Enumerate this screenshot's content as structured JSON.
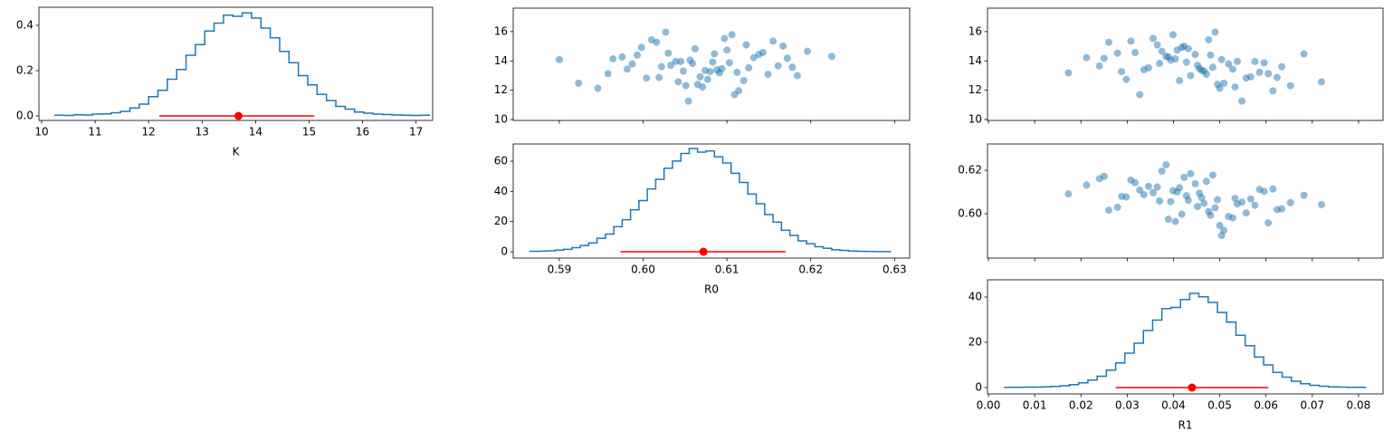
{
  "chart_data": [
    {
      "type": "histogram",
      "xlabel": "K",
      "color": "#1f77b4",
      "bins": [
        10.25,
        10.425,
        10.6,
        10.775,
        10.95,
        11.125,
        11.3,
        11.475,
        11.65,
        11.825,
        12,
        12.175,
        12.35,
        12.525,
        12.7,
        12.875,
        13.05,
        13.225,
        13.4,
        13.575,
        13.75,
        13.925,
        14.1,
        14.275,
        14.45,
        14.625,
        14.8,
        14.975,
        15.15,
        15.325,
        15.5,
        15.675,
        15.85,
        16.025,
        16.2,
        16.375,
        16.55,
        16.725,
        16.9,
        17.075,
        17.25
      ],
      "values": [
        0.003,
        0.002,
        0.005,
        0.004,
        0.008,
        0.009,
        0.014,
        0.02,
        0.035,
        0.052,
        0.085,
        0.113,
        0.162,
        0.205,
        0.268,
        0.315,
        0.375,
        0.41,
        0.445,
        0.44,
        0.455,
        0.432,
        0.388,
        0.345,
        0.285,
        0.235,
        0.178,
        0.137,
        0.095,
        0.068,
        0.042,
        0.03,
        0.017,
        0.012,
        0.008,
        0.006,
        0.004,
        0.003,
        0.002,
        0.003
      ],
      "estimate": 13.68,
      "interval": [
        12.2,
        15.1
      ],
      "estimate_color": "#ff0000",
      "xlim": [
        9.95,
        17.31
      ],
      "ylim": [
        -0.02,
        0.48
      ],
      "xticks": [
        10,
        11,
        12,
        13,
        14,
        15,
        16,
        17
      ],
      "yticks": [
        {
          "value": 0,
          "label": "0.0"
        },
        0.2,
        0.4
      ],
      "xtick_labels": true
    },
    {
      "type": "scatter",
      "color": "#1f77b4",
      "alpha": 0.5,
      "x": [
        0.6045,
        0.612,
        0.5993,
        0.608,
        0.6167,
        0.6022,
        0.6097,
        0.5946,
        0.6132,
        0.6068,
        0.6033,
        0.6196,
        0.5981,
        0.6109,
        0.6085,
        0.6056,
        0.6149,
        0.6016,
        0.5923,
        0.6103,
        0.6126,
        0.6062,
        0.6004,
        0.6225,
        0.6091,
        0.6027,
        0.6114,
        0.5964,
        0.6074,
        0.6143,
        0.6051,
        0.5987,
        0.6123,
        0.6184,
        0.6039,
        0.6077,
        0.601,
        0.6161,
        0.6054,
        0.61,
        0.59,
        0.6088,
        0.6138,
        0.6042,
        0.6059,
        0.6112,
        0.5998,
        0.6178,
        0.603,
        0.6071,
        0.5975,
        0.6094,
        0.6155,
        0.6019,
        0.6083,
        0.6065,
        0.6172,
        0.5958,
        0.6106,
        0.6048
      ],
      "y": [
        13.96,
        12.66,
        14.4,
        13.27,
        15.01,
        13.61,
        15.53,
        12.13,
        14.22,
        12.92,
        13.7,
        14.66,
        13.44,
        11.7,
        14.48,
        14.05,
        13.09,
        15.27,
        12.48,
        13.87,
        13.53,
        14.83,
        12.83,
        14.31,
        13.18,
        15.96,
        11.96,
        14.14,
        13.35,
        14.57,
        12.31,
        13.79,
        15.09,
        13,
        13.96,
        12.74,
        15.44,
        13.66,
        11.26,
        14.74,
        14.09,
        13.4,
        14.44,
        12.57,
        13.83,
        13.22,
        14.92,
        13.57,
        14.53,
        12.22,
        14.27,
        13.48,
        15.35,
        12.87,
        13.92,
        12.4,
        14.18,
        13.13,
        15.79,
        13.31
      ],
      "xlim": [
        0.5845,
        0.6318
      ],
      "ylim": [
        9.94,
        17.6
      ],
      "xticks": [
        0.59,
        0.6,
        0.61,
        0.62,
        0.63
      ],
      "yticks": [
        10,
        12,
        14,
        16
      ],
      "xtick_labels": false
    },
    {
      "type": "histogram",
      "xlabel": "R0",
      "color": "#1f77b4",
      "bins": [
        0.5865,
        0.5875,
        0.5885,
        0.5895,
        0.5905,
        0.5915,
        0.5925,
        0.5935,
        0.5945,
        0.5955,
        0.5965,
        0.5975,
        0.5985,
        0.5995,
        0.6005,
        0.6015,
        0.6025,
        0.6035,
        0.6045,
        0.6055,
        0.6065,
        0.6075,
        0.6085,
        0.6095,
        0.6105,
        0.6115,
        0.6125,
        0.6135,
        0.6145,
        0.6155,
        0.6165,
        0.6175,
        0.6185,
        0.6195,
        0.6205,
        0.6215,
        0.6225,
        0.6235,
        0.6245,
        0.6255,
        0.6265,
        0.6275,
        0.6285,
        0.6295
      ],
      "values": [
        0.3,
        0.4,
        0.6,
        1.1,
        1.6,
        2.7,
        4.1,
        5.8,
        8.9,
        11.7,
        16.6,
        21.2,
        27.8,
        33.9,
        41.6,
        48.0,
        55.3,
        60.1,
        65.1,
        68.4,
        66.0,
        66.8,
        62.9,
        58.8,
        52.0,
        45.9,
        38.2,
        31.8,
        24.7,
        19.6,
        14.2,
        10.8,
        7.2,
        5.3,
        3.3,
        2.3,
        1.3,
        0.9,
        0.5,
        0.3,
        0.2,
        0.1,
        0.1
      ],
      "estimate": 0.6072,
      "interval": [
        0.5973,
        0.617
      ],
      "estimate_color": "#ff0000",
      "xlim": [
        0.5845,
        0.6318
      ],
      "ylim": [
        -4.2,
        71.4
      ],
      "xticks": [
        0.59,
        {
          "value": 0.6,
          "label": "0.60"
        },
        0.61,
        0.62,
        0.63
      ],
      "yticks": [
        0,
        20,
        40,
        60
      ],
      "xtick_labels": true
    },
    {
      "type": "scatter",
      "color": "#1f77b4",
      "alpha": 0.5,
      "x": [
        0.0538,
        0.0413,
        0.048,
        0.0288,
        0.0423,
        0.0634,
        0.0356,
        0.05,
        0.0212,
        0.0567,
        0.0452,
        0.0375,
        0.0528,
        0.0327,
        0.0682,
        0.0394,
        0.0471,
        0.026,
        0.0509,
        0.0596,
        0.0346,
        0.0432,
        0.0557,
        0.0384,
        0.0173,
        0.049,
        0.0615,
        0.0404,
        0.0461,
        0.0317,
        0.0653,
        0.0519,
        0.0365,
        0.0437,
        0.0576,
        0.0298,
        0.0476,
        0.024,
        0.0548,
        0.0408,
        0.0504,
        0.0336,
        0.0447,
        0.072,
        0.037,
        0.0586,
        0.0418,
        0.0485,
        0.0279,
        0.0533,
        0.0389,
        0.0456,
        0.0308,
        0.0624,
        0.0428,
        0.0495,
        0.025,
        0.0605,
        0.0399,
        0.0466
      ],
      "y": [
        13.96,
        12.66,
        14.4,
        13.27,
        15.01,
        13.61,
        15.53,
        12.13,
        14.22,
        12.92,
        13.7,
        14.66,
        13.44,
        11.7,
        14.48,
        14.05,
        13.09,
        15.27,
        12.48,
        13.87,
        13.53,
        14.83,
        12.83,
        14.31,
        13.18,
        15.96,
        11.96,
        14.14,
        13.35,
        14.57,
        12.31,
        13.79,
        15.09,
        13,
        13.96,
        12.74,
        15.44,
        13.66,
        11.26,
        14.74,
        14.09,
        13.4,
        14.44,
        12.57,
        13.83,
        13.22,
        14.92,
        13.57,
        14.53,
        12.22,
        14.27,
        13.48,
        15.35,
        12.87,
        13.92,
        12.4,
        14.18,
        13.13,
        15.79,
        13.31
      ],
      "xlim": [
        -0.0002,
        0.0853
      ],
      "ylim": [
        9.94,
        17.6
      ],
      "xticks": [
        0,
        0.01,
        0.02,
        0.03,
        0.04,
        0.05,
        0.06,
        0.07,
        0.08
      ],
      "yticks": [
        10,
        12,
        14,
        16
      ],
      "xtick_labels": false
    },
    {
      "type": "scatter",
      "color": "#1f77b4",
      "alpha": 0.5,
      "x": [
        0.0538,
        0.0413,
        0.048,
        0.0288,
        0.0423,
        0.0634,
        0.0356,
        0.05,
        0.0212,
        0.0567,
        0.0452,
        0.0375,
        0.0528,
        0.0327,
        0.0682,
        0.0394,
        0.0471,
        0.026,
        0.0509,
        0.0596,
        0.0346,
        0.0432,
        0.0557,
        0.0384,
        0.0173,
        0.049,
        0.0615,
        0.0404,
        0.0461,
        0.0317,
        0.0653,
        0.0519,
        0.0365,
        0.0437,
        0.0576,
        0.0298,
        0.0476,
        0.024,
        0.0548,
        0.0408,
        0.0504,
        0.0336,
        0.0447,
        0.072,
        0.037,
        0.0586,
        0.0418,
        0.0485,
        0.0279,
        0.0533,
        0.0389,
        0.0456,
        0.0308,
        0.0624,
        0.0428,
        0.0495,
        0.025,
        0.0605,
        0.0399,
        0.0466
      ],
      "y": [
        0.6045,
        0.612,
        0.5993,
        0.608,
        0.6167,
        0.6022,
        0.6097,
        0.5946,
        0.6132,
        0.6068,
        0.6033,
        0.6196,
        0.5981,
        0.6109,
        0.6085,
        0.6056,
        0.6149,
        0.6016,
        0.5923,
        0.6103,
        0.6126,
        0.6062,
        0.6004,
        0.6225,
        0.6091,
        0.6027,
        0.6114,
        0.5964,
        0.6074,
        0.6143,
        0.6051,
        0.5987,
        0.6123,
        0.6184,
        0.6039,
        0.6077,
        0.601,
        0.6161,
        0.6054,
        0.61,
        0.59,
        0.6088,
        0.6138,
        0.6042,
        0.6059,
        0.6112,
        0.5998,
        0.6178,
        0.603,
        0.6071,
        0.5975,
        0.6094,
        0.6155,
        0.6019,
        0.6083,
        0.6065,
        0.6172,
        0.5958,
        0.6106,
        0.6048
      ],
      "xlim": [
        -0.0002,
        0.0853
      ],
      "ylim": [
        0.5796,
        0.6321
      ],
      "xticks": [
        0,
        0.01,
        0.02,
        0.03,
        0.04,
        0.05,
        0.06,
        0.07,
        0.08
      ],
      "yticks": [
        {
          "value": 0.6,
          "label": "0.60"
        },
        0.62
      ],
      "xtick_labels": false
    },
    {
      "type": "histogram",
      "xlabel": "R1",
      "color": "#1f77b4",
      "bins": [
        0.0035,
        0.0055,
        0.0075,
        0.0095,
        0.0115,
        0.0135,
        0.0155,
        0.0175,
        0.0195,
        0.0215,
        0.0235,
        0.0255,
        0.0275,
        0.0295,
        0.0315,
        0.0335,
        0.0355,
        0.0375,
        0.0395,
        0.0415,
        0.0435,
        0.0455,
        0.0475,
        0.0495,
        0.0515,
        0.0535,
        0.0555,
        0.0575,
        0.0595,
        0.0615,
        0.0635,
        0.0655,
        0.0675,
        0.0695,
        0.0715,
        0.0735,
        0.0755,
        0.0775,
        0.0795,
        0.0815
      ],
      "values": [
        0.1,
        0.1,
        0.2,
        0.2,
        0.3,
        0.5,
        0.8,
        1.3,
        2.1,
        3.3,
        5.0,
        7.7,
        10.9,
        15.2,
        19.6,
        25.2,
        29.8,
        34.9,
        35.4,
        38.9,
        41.6,
        40.1,
        37.6,
        33.2,
        28.9,
        23.1,
        18.5,
        13.5,
        10.0,
        6.7,
        4.6,
        2.8,
        1.7,
        1.0,
        0.6,
        0.3,
        0.2,
        0.1,
        0.1
      ],
      "estimate": 0.044,
      "interval": [
        0.0275,
        0.0605
      ],
      "estimate_color": "#ff0000",
      "xlim": [
        -0.0002,
        0.0853
      ],
      "ylim": [
        -2.8,
        47.6
      ],
      "xticks": [
        {
          "value": 0,
          "label": "0.00"
        },
        0.01,
        0.02,
        0.03,
        0.04,
        0.05,
        0.06,
        0.07,
        0.08
      ],
      "yticks": [
        0,
        20,
        40
      ],
      "xtick_labels": true
    }
  ]
}
